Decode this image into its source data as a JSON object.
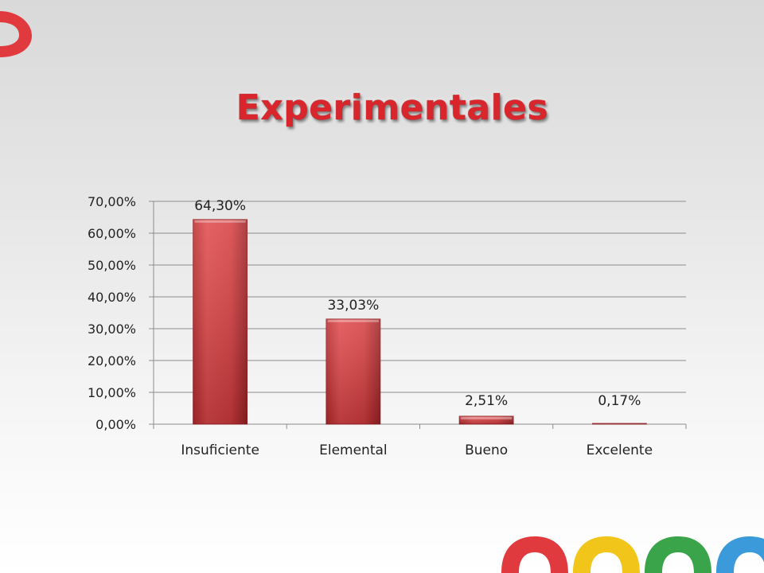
{
  "slide": {
    "title": "Experimentales",
    "colors": {
      "accent": "#d9262c",
      "bar": "#d43a3c",
      "logo_red": "#e03a3e",
      "logo_yellow": "#f2c51b",
      "logo_green": "#3aa44a",
      "logo_blue": "#3b9ad9"
    }
  },
  "chart_data": {
    "type": "bar",
    "title": "",
    "xlabel": "",
    "ylabel": "",
    "categories": [
      "Insuficiente",
      "Elemental",
      "Bueno",
      "Excelente"
    ],
    "values": [
      64.3,
      33.03,
      2.51,
      0.17
    ],
    "value_labels": [
      "64,30%",
      "33,03%",
      "2,51%",
      "0,17%"
    ],
    "ylim": [
      0,
      70
    ],
    "yticks": [
      0,
      10,
      20,
      30,
      40,
      50,
      60,
      70
    ],
    "ytick_labels": [
      "0,00%",
      "10,00%",
      "20,00%",
      "30,00%",
      "40,00%",
      "50,00%",
      "60,00%",
      "70,00%"
    ],
    "grid": true,
    "legend": "none"
  }
}
